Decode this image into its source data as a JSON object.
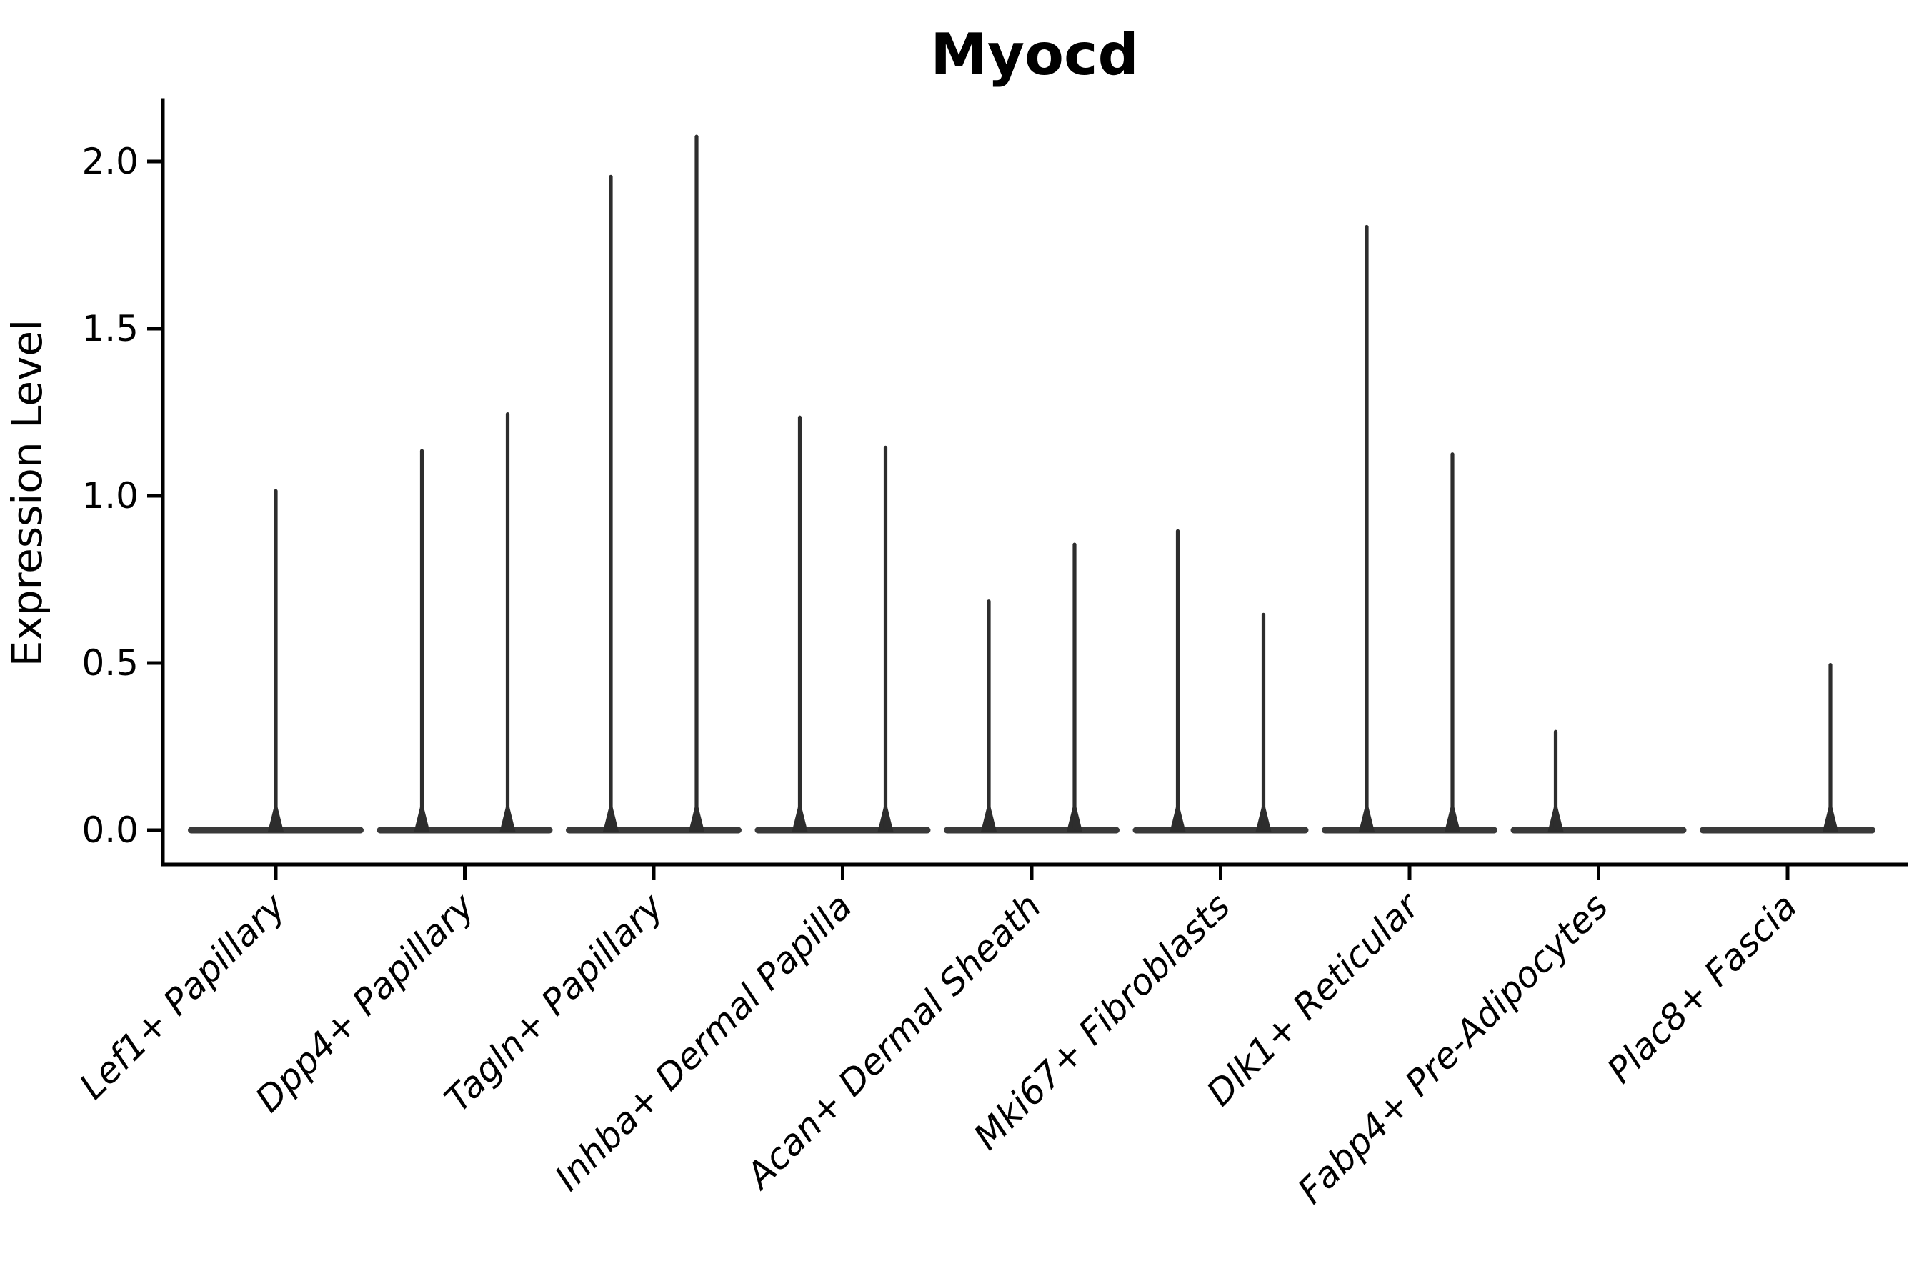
{
  "chart_data": {
    "type": "violin",
    "title": "Myocd",
    "xlabel": "",
    "ylabel": "Expression Level",
    "ylim": [
      -0.1,
      2.18
    ],
    "yticks": [
      0.0,
      0.5,
      1.0,
      1.5,
      2.0
    ],
    "ytick_labels": [
      "0.0",
      "0.5",
      "1.0",
      "1.5",
      "2.0"
    ],
    "grid": false,
    "legend": "none",
    "x_tick_rotation_degrees": 45,
    "categories": [
      "Lef1+ Papillary",
      "Dpp4+ Papillary",
      "Tagln+ Papillary",
      "Inhba+ Dermal Papilla",
      "Acan+ Dermal Sheath",
      "Mki67+ Fibroblasts",
      "Dlk1+ Reticular",
      "Fabp4+ Pre-Adipocytes",
      "Plac8+ Fascia"
    ],
    "groups": [
      {
        "category": "Lef1+ Papillary",
        "violins": [
          {
            "position": "center",
            "max_expression": 1.02
          }
        ]
      },
      {
        "category": "Dpp4+ Papillary",
        "violins": [
          {
            "position": "left",
            "max_expression": 1.14
          },
          {
            "position": "right",
            "max_expression": 1.25
          }
        ]
      },
      {
        "category": "Tagln+ Papillary",
        "violins": [
          {
            "position": "left",
            "max_expression": 1.96
          },
          {
            "position": "right",
            "max_expression": 2.08
          }
        ]
      },
      {
        "category": "Inhba+ Dermal Papilla",
        "violins": [
          {
            "position": "left",
            "max_expression": 1.24
          },
          {
            "position": "right",
            "max_expression": 1.15
          }
        ]
      },
      {
        "category": "Acan+ Dermal Sheath",
        "violins": [
          {
            "position": "left",
            "max_expression": 0.69
          },
          {
            "position": "right",
            "max_expression": 0.86
          }
        ]
      },
      {
        "category": "Mki67+ Fibroblasts",
        "violins": [
          {
            "position": "left",
            "max_expression": 0.9
          },
          {
            "position": "right",
            "max_expression": 0.65
          }
        ]
      },
      {
        "category": "Dlk1+ Reticular",
        "violins": [
          {
            "position": "left",
            "max_expression": 1.81
          },
          {
            "position": "right",
            "max_expression": 1.13
          }
        ]
      },
      {
        "category": "Fabp4+ Pre-Adipocytes",
        "violins": [
          {
            "position": "left",
            "max_expression": 0.3
          }
        ]
      },
      {
        "category": "Plac8+ Fascia",
        "violins": [
          {
            "position": "right",
            "max_expression": 0.5
          }
        ]
      }
    ],
    "colors": {
      "violin_line": "#2d2d2d",
      "violin_fill": "#3a3a3a",
      "axis": "#000000",
      "text": "#000000",
      "background": "#ffffff"
    }
  }
}
